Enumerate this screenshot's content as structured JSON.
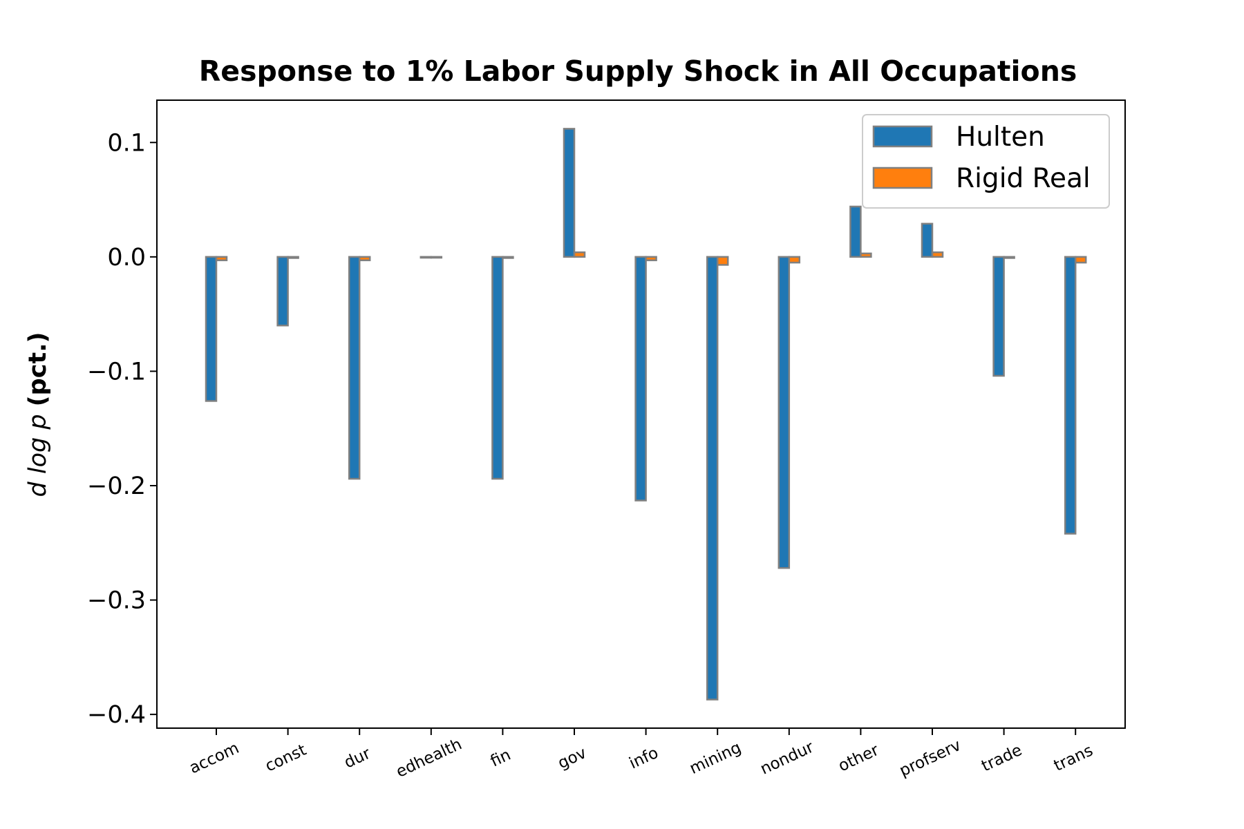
{
  "chart_data": {
    "type": "bar",
    "title": "Response to 1% Labor Supply Shock in All Occupations",
    "ylabel": "d log p  (pct.)",
    "ylabel_italic_part": "d log p",
    "ylabel_bold_part": "(pct.)",
    "xlabel": "",
    "ylim": [
      -0.412,
      0.137
    ],
    "yticks": [
      0.1,
      0.0,
      -0.1,
      -0.2,
      -0.3,
      -0.4
    ],
    "ytick_labels": [
      "0.1",
      "0.0",
      "−0.1",
      "−0.2",
      "−0.3",
      "−0.4"
    ],
    "grid": false,
    "legend_position": "upper right",
    "categories": [
      "accom",
      "const",
      "dur",
      "edhealth",
      "fin",
      "gov",
      "info",
      "mining",
      "nondur",
      "other",
      "profserv",
      "trade",
      "trans"
    ],
    "series": [
      {
        "name": "Hulten",
        "color": "#1f77b4",
        "values": [
          -0.126,
          -0.06,
          -0.194,
          0.0,
          -0.194,
          0.112,
          -0.213,
          -0.387,
          -0.272,
          0.044,
          0.029,
          -0.104,
          -0.242
        ]
      },
      {
        "name": "Rigid Real",
        "color": "#ff7f0e",
        "values": [
          -0.003,
          -0.001,
          -0.003,
          0.0,
          -0.001,
          0.004,
          -0.003,
          -0.007,
          -0.005,
          0.003,
          0.004,
          -0.001,
          -0.005
        ]
      }
    ],
    "edge_color": "#808080"
  }
}
